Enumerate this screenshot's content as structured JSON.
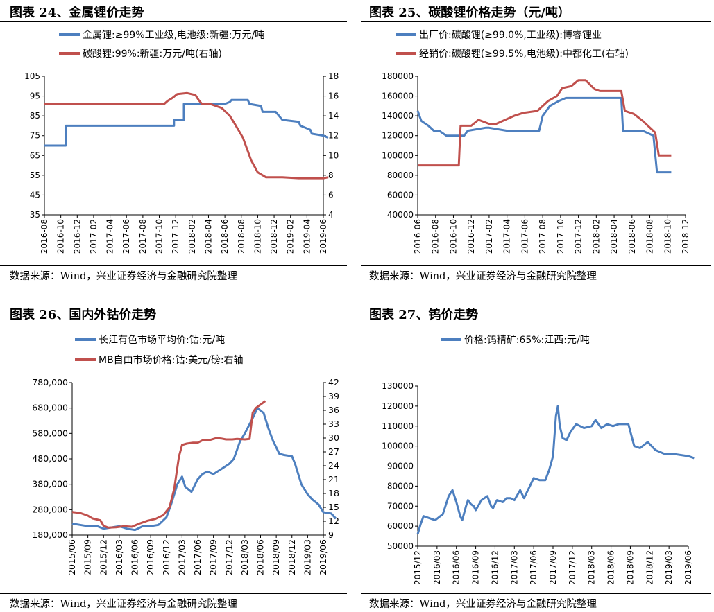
{
  "colors": {
    "blue": "#4d7fbf",
    "red": "#c0504d"
  },
  "source_text": "数据来源：Wind，兴业证券经济与金融研究院整理",
  "chart_data": [
    {
      "id": "c24",
      "figure_title": "图表 24、金属锂价走势",
      "type": "line",
      "dual_axis": true,
      "legend_position": "top",
      "grid": false,
      "y_left": {
        "min": 35,
        "max": 105,
        "ticks": [
          35,
          45,
          55,
          65,
          75,
          85,
          95,
          105
        ]
      },
      "y_right": {
        "min": 4,
        "max": 18,
        "ticks": [
          4,
          6,
          8,
          10,
          12,
          14,
          16,
          18
        ]
      },
      "x_ticks": [
        "2016-08",
        "2016-10",
        "2016-12",
        "2017-02",
        "2017-04",
        "2017-06",
        "2017-08",
        "2017-10",
        "2017-12",
        "2018-02",
        "2018-04",
        "2018-06",
        "2018-08",
        "2018-10",
        "2018-12",
        "2019-02",
        "2019-04",
        "2019-06"
      ],
      "series": [
        {
          "name": "金属锂:≥99%工业级,电池级:新疆:万元/吨",
          "axis": "left",
          "color": "blue",
          "x": [
            0,
            1.3,
            1.3,
            6.9,
            7.9,
            7.9,
            8.5,
            8.5,
            11,
            11.3,
            11.4,
            11.5,
            12.4,
            12.5,
            13.2,
            13.3,
            14.1,
            14.2,
            14.5,
            15.5,
            15.6,
            16.2,
            16.3,
            17,
            17.3
          ],
          "y": [
            70,
            70,
            80,
            80,
            80,
            83,
            83,
            91,
            91,
            92,
            93,
            93,
            93,
            91,
            90,
            87,
            87,
            86,
            83,
            82,
            80,
            78,
            76,
            75,
            74
          ]
        },
        {
          "name": "碳酸锂:99%:新疆:万元/吨(右轴)",
          "axis": "right",
          "color": "red",
          "x": [
            0,
            7.3,
            7.5,
            7.8,
            8.1,
            8.7,
            9.2,
            9.4,
            9.6,
            10.1,
            10.8,
            11.3,
            11.6,
            12.1,
            12.6,
            13,
            13.5,
            14.5,
            15.5,
            16,
            17,
            17.3
          ],
          "y": [
            15.2,
            15.2,
            15.5,
            15.8,
            16.2,
            16.3,
            16.1,
            15.6,
            15.2,
            15.2,
            14.8,
            14,
            13.2,
            11.8,
            9.5,
            8.3,
            7.8,
            7.8,
            7.7,
            7.7,
            7.7,
            7.8
          ]
        }
      ]
    },
    {
      "id": "c25",
      "figure_title": "图表 25、碳酸锂价格走势（元/吨）",
      "type": "line",
      "dual_axis": false,
      "legend_position": "top",
      "grid": false,
      "y_left": {
        "min": 40000,
        "max": 180000,
        "ticks": [
          40000,
          60000,
          80000,
          100000,
          120000,
          140000,
          160000,
          180000
        ]
      },
      "x_ticks": [
        "2016-06",
        "2016-08",
        "2016-10",
        "2016-12",
        "2017-02",
        "2017-04",
        "2017-06",
        "2017-08",
        "2017-10",
        "2017-12",
        "2018-02",
        "2018-04",
        "2018-06",
        "2018-08",
        "2018-10",
        "2018-12"
      ],
      "series": [
        {
          "name": "出厂价:碳酸锂(≥99.0%,工业级):博睿锂业",
          "axis": "left",
          "color": "blue",
          "x": [
            0,
            0.2,
            0.6,
            0.9,
            1.2,
            1.6,
            2.6,
            2.8,
            3.8,
            4,
            5,
            5.8,
            6.8,
            7,
            7.4,
            7.9,
            8.3,
            9.5,
            10.5,
            11.4,
            11.5,
            12.6,
            13.2,
            13.4,
            13.9,
            14.2
          ],
          "y": [
            145000,
            135000,
            130000,
            125000,
            125000,
            120000,
            120000,
            125000,
            128000,
            128000,
            125000,
            125000,
            125000,
            140000,
            150000,
            155000,
            158000,
            158000,
            158000,
            158000,
            125000,
            125000,
            120000,
            83000,
            83000,
            83000
          ]
        },
        {
          "name": "经销价:碳酸锂(≥99.5%,电池级):中都化工(右轴)",
          "axis": "left",
          "color": "red",
          "x": [
            0,
            2.3,
            2.4,
            3,
            3.4,
            4,
            4.4,
            5.4,
            5.9,
            6.7,
            7.3,
            7.8,
            8.1,
            8.6,
            9,
            9.4,
            9.9,
            10.2,
            10.9,
            11.4,
            11.6,
            12.1,
            12.6,
            13.3,
            13.5,
            14.2
          ],
          "y": [
            90000,
            90000,
            130000,
            130000,
            136000,
            132000,
            132000,
            140000,
            143000,
            145000,
            155000,
            160000,
            168000,
            170000,
            176000,
            176000,
            167000,
            165000,
            165000,
            165000,
            145000,
            142000,
            135000,
            123000,
            100000,
            100000
          ]
        }
      ]
    },
    {
      "id": "c26",
      "figure_title": "图表 26、国内外钴价走势",
      "type": "line",
      "dual_axis": true,
      "legend_position": "top",
      "grid": false,
      "y_left": {
        "min": 180000,
        "max": 780000,
        "ticks": [
          "180,000",
          "280,000",
          "380,000",
          "480,000",
          "580,000",
          "680,000",
          "780,000"
        ],
        "tick_values": [
          180000,
          280000,
          380000,
          480000,
          580000,
          680000,
          780000
        ]
      },
      "y_right": {
        "min": 9,
        "max": 42,
        "ticks": [
          9,
          12,
          15,
          18,
          21,
          24,
          27,
          30,
          33,
          36,
          39,
          42
        ]
      },
      "x_ticks": [
        "2015/06",
        "2015/09",
        "2015/12",
        "2016/03",
        "2016/06",
        "2016/09",
        "2016/12",
        "2017/03",
        "2017/06",
        "2017/09",
        "2017/12",
        "2018/03",
        "2018/06",
        "2018/09",
        "2018/12",
        "2019/03",
        "2019/06"
      ],
      "series": [
        {
          "name": "长江有色市场平均价:钴:元/吨",
          "axis": "left",
          "color": "blue",
          "x": [
            0,
            0.5,
            1,
            1.6,
            2,
            2.5,
            3,
            3.5,
            4,
            4.5,
            5,
            5.5,
            6,
            6.3,
            6.7,
            7,
            7.2,
            7.6,
            8,
            8.3,
            8.6,
            9,
            9.5,
            10,
            10.3,
            10.7,
            11,
            11.5,
            11.8,
            12.2,
            12.5,
            12.8,
            13.2,
            13.5,
            14,
            14.2,
            14.6,
            15,
            15.3,
            15.7,
            16,
            16.5,
            16.8
          ],
          "y": [
            225000,
            220000,
            215000,
            215000,
            205000,
            210000,
            215000,
            205000,
            200000,
            215000,
            215000,
            220000,
            250000,
            300000,
            380000,
            410000,
            370000,
            350000,
            400000,
            420000,
            430000,
            420000,
            440000,
            460000,
            480000,
            550000,
            580000,
            640000,
            680000,
            660000,
            600000,
            550000,
            500000,
            495000,
            490000,
            460000,
            380000,
            340000,
            320000,
            300000,
            270000,
            265000,
            245000
          ]
        },
        {
          "name": "MB自由市场价格:钴:美元/磅:右轴",
          "axis": "right",
          "color": "red",
          "x": [
            0,
            0.5,
            1,
            1.3,
            1.8,
            2,
            2.3,
            2.8,
            3.3,
            3.8,
            4.3,
            4.8,
            5.3,
            5.8,
            6.2,
            6.5,
            6.8,
            7,
            7.3,
            7.7,
            8,
            8.3,
            8.7,
            9,
            9.2,
            9.5,
            9.8,
            10.2,
            10.5,
            11,
            11.3,
            11.5,
            11.7,
            11.9,
            12.1,
            12.3
          ],
          "y": [
            14,
            13.8,
            13.2,
            12.6,
            12.2,
            11,
            10.6,
            10.7,
            10.9,
            10.8,
            11.5,
            12.1,
            12.5,
            13.3,
            15,
            19,
            26,
            28.5,
            28.8,
            29,
            29,
            29.5,
            29.5,
            29.8,
            30,
            29.9,
            29.7,
            29.7,
            29.8,
            29.7,
            29.8,
            35.5,
            36.5,
            37,
            37.5,
            38
          ]
        }
      ]
    },
    {
      "id": "c27",
      "figure_title": "图表 27、钨价走势",
      "type": "line",
      "dual_axis": false,
      "legend_position": "top",
      "grid": false,
      "y_left": {
        "min": 50000,
        "max": 130000,
        "ticks": [
          50000,
          60000,
          70000,
          80000,
          90000,
          100000,
          110000,
          120000,
          130000
        ]
      },
      "x_ticks": [
        "2015/12",
        "2016/03",
        "2016/06",
        "2016/09",
        "2016/12",
        "2017/03",
        "2017/06",
        "2017/09",
        "2017/12",
        "2018/03",
        "2018/06",
        "2018/09",
        "2018/12",
        "2019/03",
        "2019/06"
      ],
      "series": [
        {
          "name": "价格:钨精矿:65%:江西:元/吨",
          "axis": "left",
          "color": "blue",
          "x": [
            0,
            0.15,
            0.3,
            0.6,
            0.9,
            1.3,
            1.6,
            1.8,
            2,
            2.2,
            2.3,
            2.5,
            2.6,
            2.75,
            2.9,
            3,
            3.3,
            3.6,
            3.8,
            3.9,
            4.1,
            4.4,
            4.6,
            4.8,
            5,
            5.3,
            5.5,
            5.8,
            6,
            6.3,
            6.6,
            6.8,
            7,
            7.15,
            7.25,
            7.35,
            7.5,
            7.7,
            7.9,
            8.2,
            8.6,
            9,
            9.2,
            9.5,
            9.8,
            10.1,
            10.4,
            10.9,
            11.2,
            11.5,
            11.9,
            12.3,
            12.8,
            13.3,
            14,
            14.3
          ],
          "y": [
            56000,
            61000,
            65000,
            64000,
            63000,
            66000,
            75000,
            78000,
            72000,
            65000,
            63000,
            70000,
            73000,
            71000,
            70000,
            68000,
            73000,
            75000,
            70000,
            69000,
            73000,
            72000,
            74000,
            74000,
            73000,
            78000,
            74000,
            80000,
            84000,
            83000,
            83000,
            88000,
            95000,
            115000,
            120000,
            110000,
            104000,
            103000,
            107000,
            111000,
            109000,
            110000,
            113000,
            109000,
            111000,
            110000,
            111000,
            111000,
            100000,
            99000,
            102000,
            98000,
            96000,
            96000,
            95000,
            94000
          ]
        }
      ]
    }
  ]
}
